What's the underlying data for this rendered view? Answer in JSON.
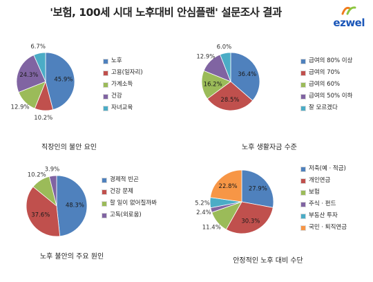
{
  "page": {
    "title": "'보험, 100세 시대 노후대비 안심플랜' 설문조사 결과",
    "logo_text": "ezwel",
    "logo_colors": [
      "#f07a1c",
      "#8cc63f",
      "#1a56b8"
    ]
  },
  "chart_data": [
    {
      "type": "pie",
      "title": "직장인의 불안 요인",
      "categories": [
        "노후",
        "고용(일자리)",
        "가계소득",
        "건강",
        "자녀교육"
      ],
      "values": [
        45.9,
        10.2,
        12.9,
        24.3,
        6.7
      ],
      "labels": [
        "45.9%",
        "10.2%",
        "12.9%",
        "24.3%",
        "6.7%"
      ],
      "colors": [
        "#4f81bd",
        "#c0504d",
        "#9bbb59",
        "#8064a2",
        "#4bacc6"
      ],
      "legend": "right"
    },
    {
      "type": "pie",
      "title": "노후 생활자금 수준",
      "categories": [
        "급여의 80% 이상",
        "급여의 70%",
        "급여의 60%",
        "급여의 50% 이하",
        "잘 모르겠다"
      ],
      "values": [
        36.4,
        28.5,
        16.2,
        12.9,
        6.0
      ],
      "labels": [
        "36.4%",
        "28.5%",
        "16.2%",
        "12.9%",
        "6.0%"
      ],
      "colors": [
        "#4f81bd",
        "#c0504d",
        "#9bbb59",
        "#8064a2",
        "#4bacc6"
      ],
      "legend": "right"
    },
    {
      "type": "pie",
      "title": "노후 불안의 주요 원인",
      "categories": [
        "경제적 빈곤",
        "건강 문제",
        "할 일이 없어질까봐",
        "고독(외로움)"
      ],
      "values": [
        48.3,
        37.6,
        10.2,
        3.9
      ],
      "labels": [
        "48.3%",
        "37.6%",
        "10.2%",
        "3.9%"
      ],
      "colors": [
        "#4f81bd",
        "#c0504d",
        "#9bbb59",
        "#8064a2"
      ],
      "legend": "right"
    },
    {
      "type": "pie",
      "title": "안정적인 노후 대비 수단",
      "categories": [
        "저축(예 · 적금)",
        "개인연금",
        "보험",
        "주식 · 펀드",
        "부동산 투자",
        "국민 · 퇴직연금"
      ],
      "values": [
        27.9,
        30.3,
        11.4,
        2.4,
        5.2,
        22.8
      ],
      "labels": [
        "27.9%",
        "30.3%",
        "11.4%",
        "2.4%",
        "5.2%",
        "22.8%"
      ],
      "colors": [
        "#4f81bd",
        "#c0504d",
        "#9bbb59",
        "#8064a2",
        "#4bacc6",
        "#f79646"
      ],
      "legend": "right"
    }
  ]
}
